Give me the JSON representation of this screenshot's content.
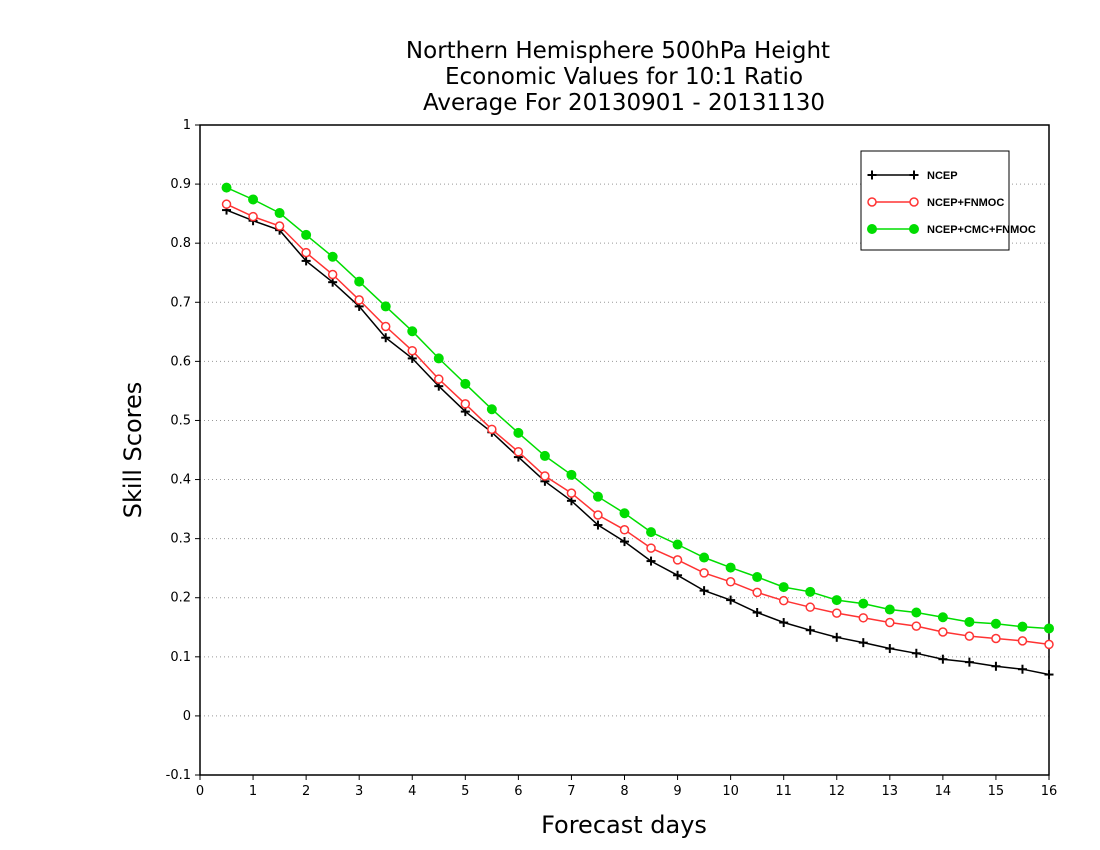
{
  "chart_data": {
    "type": "line",
    "title": [
      "Northern Hemisphere 500hPa Height",
      "Economic Values for 10:1 Ratio",
      "Average For 20130901 - 20131130"
    ],
    "xlabel": "Forecast days",
    "ylabel": "Skill Scores",
    "xlim": [
      0,
      16
    ],
    "ylim": [
      -0.1,
      1
    ],
    "xticks": [
      "0",
      "1",
      "2",
      "3",
      "4",
      "5",
      "6",
      "7",
      "8",
      "9",
      "10",
      "11",
      "12",
      "13",
      "14",
      "15",
      "16"
    ],
    "yticks": [
      "-0.1",
      "0",
      "0.1",
      "0.2",
      "0.3",
      "0.4",
      "0.5",
      "0.6",
      "0.7",
      "0.8",
      "0.9",
      "1"
    ],
    "grid": "horizontal-dotted",
    "legend_position": "top-right",
    "x": [
      0.5,
      1,
      1.5,
      2,
      2.5,
      3,
      3.5,
      4,
      4.5,
      5,
      5.5,
      6,
      6.5,
      7,
      7.5,
      8,
      8.5,
      9,
      9.5,
      10,
      10.5,
      11,
      11.5,
      12,
      12.5,
      13,
      13.5,
      14,
      14.5,
      15,
      15.5,
      16
    ],
    "series": [
      {
        "name": "NCEP",
        "color": "#000000",
        "marker": "plus",
        "values": [
          0.856,
          0.838,
          0.822,
          0.77,
          0.734,
          0.693,
          0.64,
          0.605,
          0.558,
          0.515,
          0.48,
          0.438,
          0.397,
          0.364,
          0.323,
          0.295,
          0.262,
          0.238,
          0.212,
          0.196,
          0.175,
          0.158,
          0.145,
          0.133,
          0.124,
          0.114,
          0.106,
          0.096,
          0.091,
          0.084,
          0.079,
          0.07
        ]
      },
      {
        "name": "NCEP+FNMOC",
        "color": "#ff3333",
        "marker": "open-circle",
        "values": [
          0.866,
          0.845,
          0.829,
          0.784,
          0.747,
          0.704,
          0.659,
          0.618,
          0.57,
          0.528,
          0.485,
          0.447,
          0.406,
          0.377,
          0.34,
          0.315,
          0.284,
          0.264,
          0.242,
          0.227,
          0.209,
          0.195,
          0.184,
          0.174,
          0.166,
          0.158,
          0.152,
          0.142,
          0.135,
          0.131,
          0.127,
          0.121
        ]
      },
      {
        "name": "NCEP+CMC+FNMOC",
        "color": "#00dd00",
        "marker": "filled-circle",
        "values": [
          0.894,
          0.874,
          0.851,
          0.814,
          0.777,
          0.735,
          0.693,
          0.651,
          0.605,
          0.562,
          0.519,
          0.479,
          0.44,
          0.408,
          0.371,
          0.343,
          0.311,
          0.29,
          0.268,
          0.251,
          0.235,
          0.218,
          0.21,
          0.196,
          0.19,
          0.18,
          0.175,
          0.167,
          0.159,
          0.156,
          0.151,
          0.148
        ]
      }
    ]
  }
}
